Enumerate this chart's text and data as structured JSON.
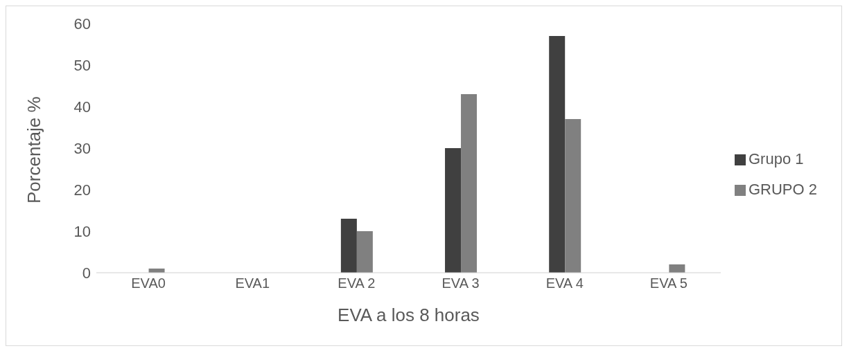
{
  "chart_data": {
    "type": "bar",
    "xlabel": "EVA  a los 8 horas",
    "ylabel": "Porcentaje  %",
    "categories": [
      "EVA0",
      "EVA1",
      "EVA 2",
      "EVA 3",
      "EVA 4",
      "EVA 5"
    ],
    "series": [
      {
        "name": "Grupo 1",
        "color": "#404040",
        "values": [
          0,
          0,
          13,
          30,
          57,
          0
        ]
      },
      {
        "name": "GRUPO 2",
        "color": "#808080",
        "values": [
          1,
          0,
          10,
          43,
          37,
          2
        ]
      }
    ],
    "ylim": [
      0,
      60
    ],
    "yticks": [
      0,
      10,
      20,
      30,
      40,
      50,
      60
    ],
    "grid": false,
    "legend": "right"
  }
}
